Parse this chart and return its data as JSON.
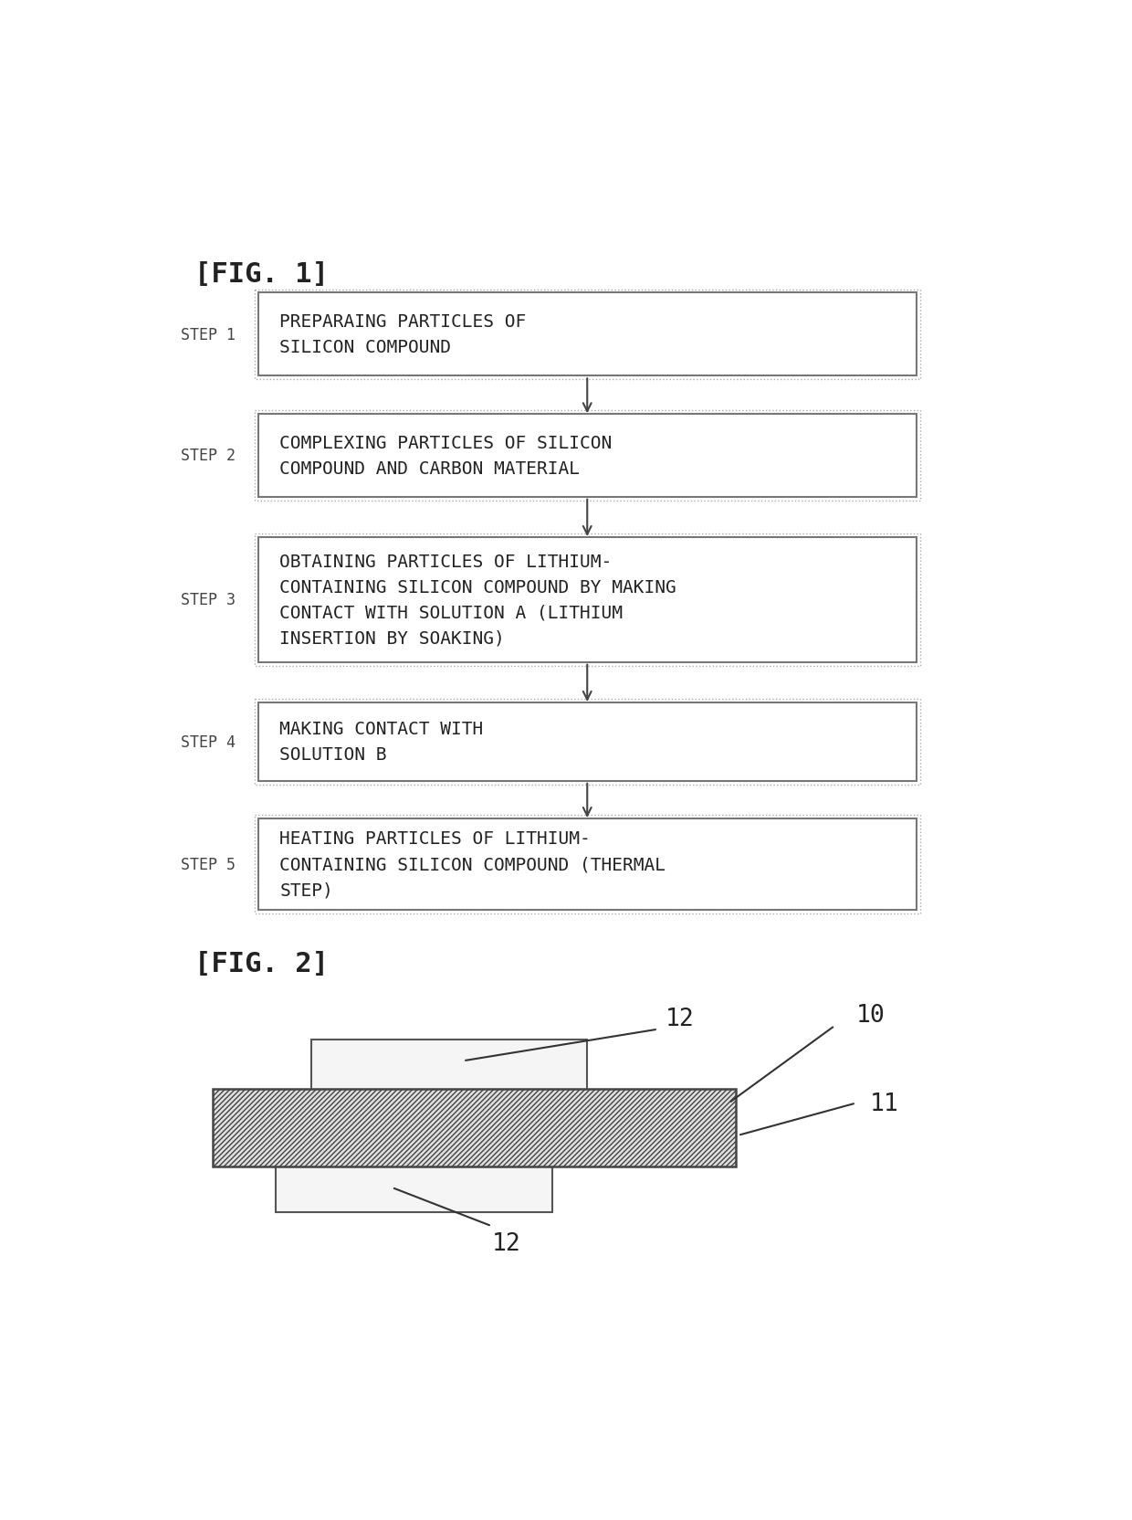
{
  "fig1_title": "[FIG. 1]",
  "fig2_title": "[FIG. 2]",
  "steps": [
    {
      "label": "STEP 1",
      "text": "PREPARAING PARTICLES OF\nSILICON COMPOUND"
    },
    {
      "label": "STEP 2",
      "text": "COMPLEXING PARTICLES OF SILICON\nCOMPOUND AND CARBON MATERIAL"
    },
    {
      "label": "STEP 3",
      "text": "OBTAINING PARTICLES OF LITHIUM-\nCONTAINING SILICON COMPOUND BY MAKING\nCONTACT WITH SOLUTION A (LITHIUM\nINSERTION BY SOAKING)"
    },
    {
      "label": "STEP 4",
      "text": "MAKING CONTACT WITH\nSOLUTION B"
    },
    {
      "label": "STEP 5",
      "text": "HEATING PARTICLES OF LITHIUM-\nCONTAINING SILICON COMPOUND (THERMAL\nSTEP)"
    }
  ],
  "bg_color": "#ffffff",
  "box_facecolor": "#ffffff",
  "box_edgecolor": "#777777",
  "box_edgecolor2": "#aaaaaa",
  "text_color": "#222222",
  "arrow_color": "#444444",
  "label_color": "#444444"
}
